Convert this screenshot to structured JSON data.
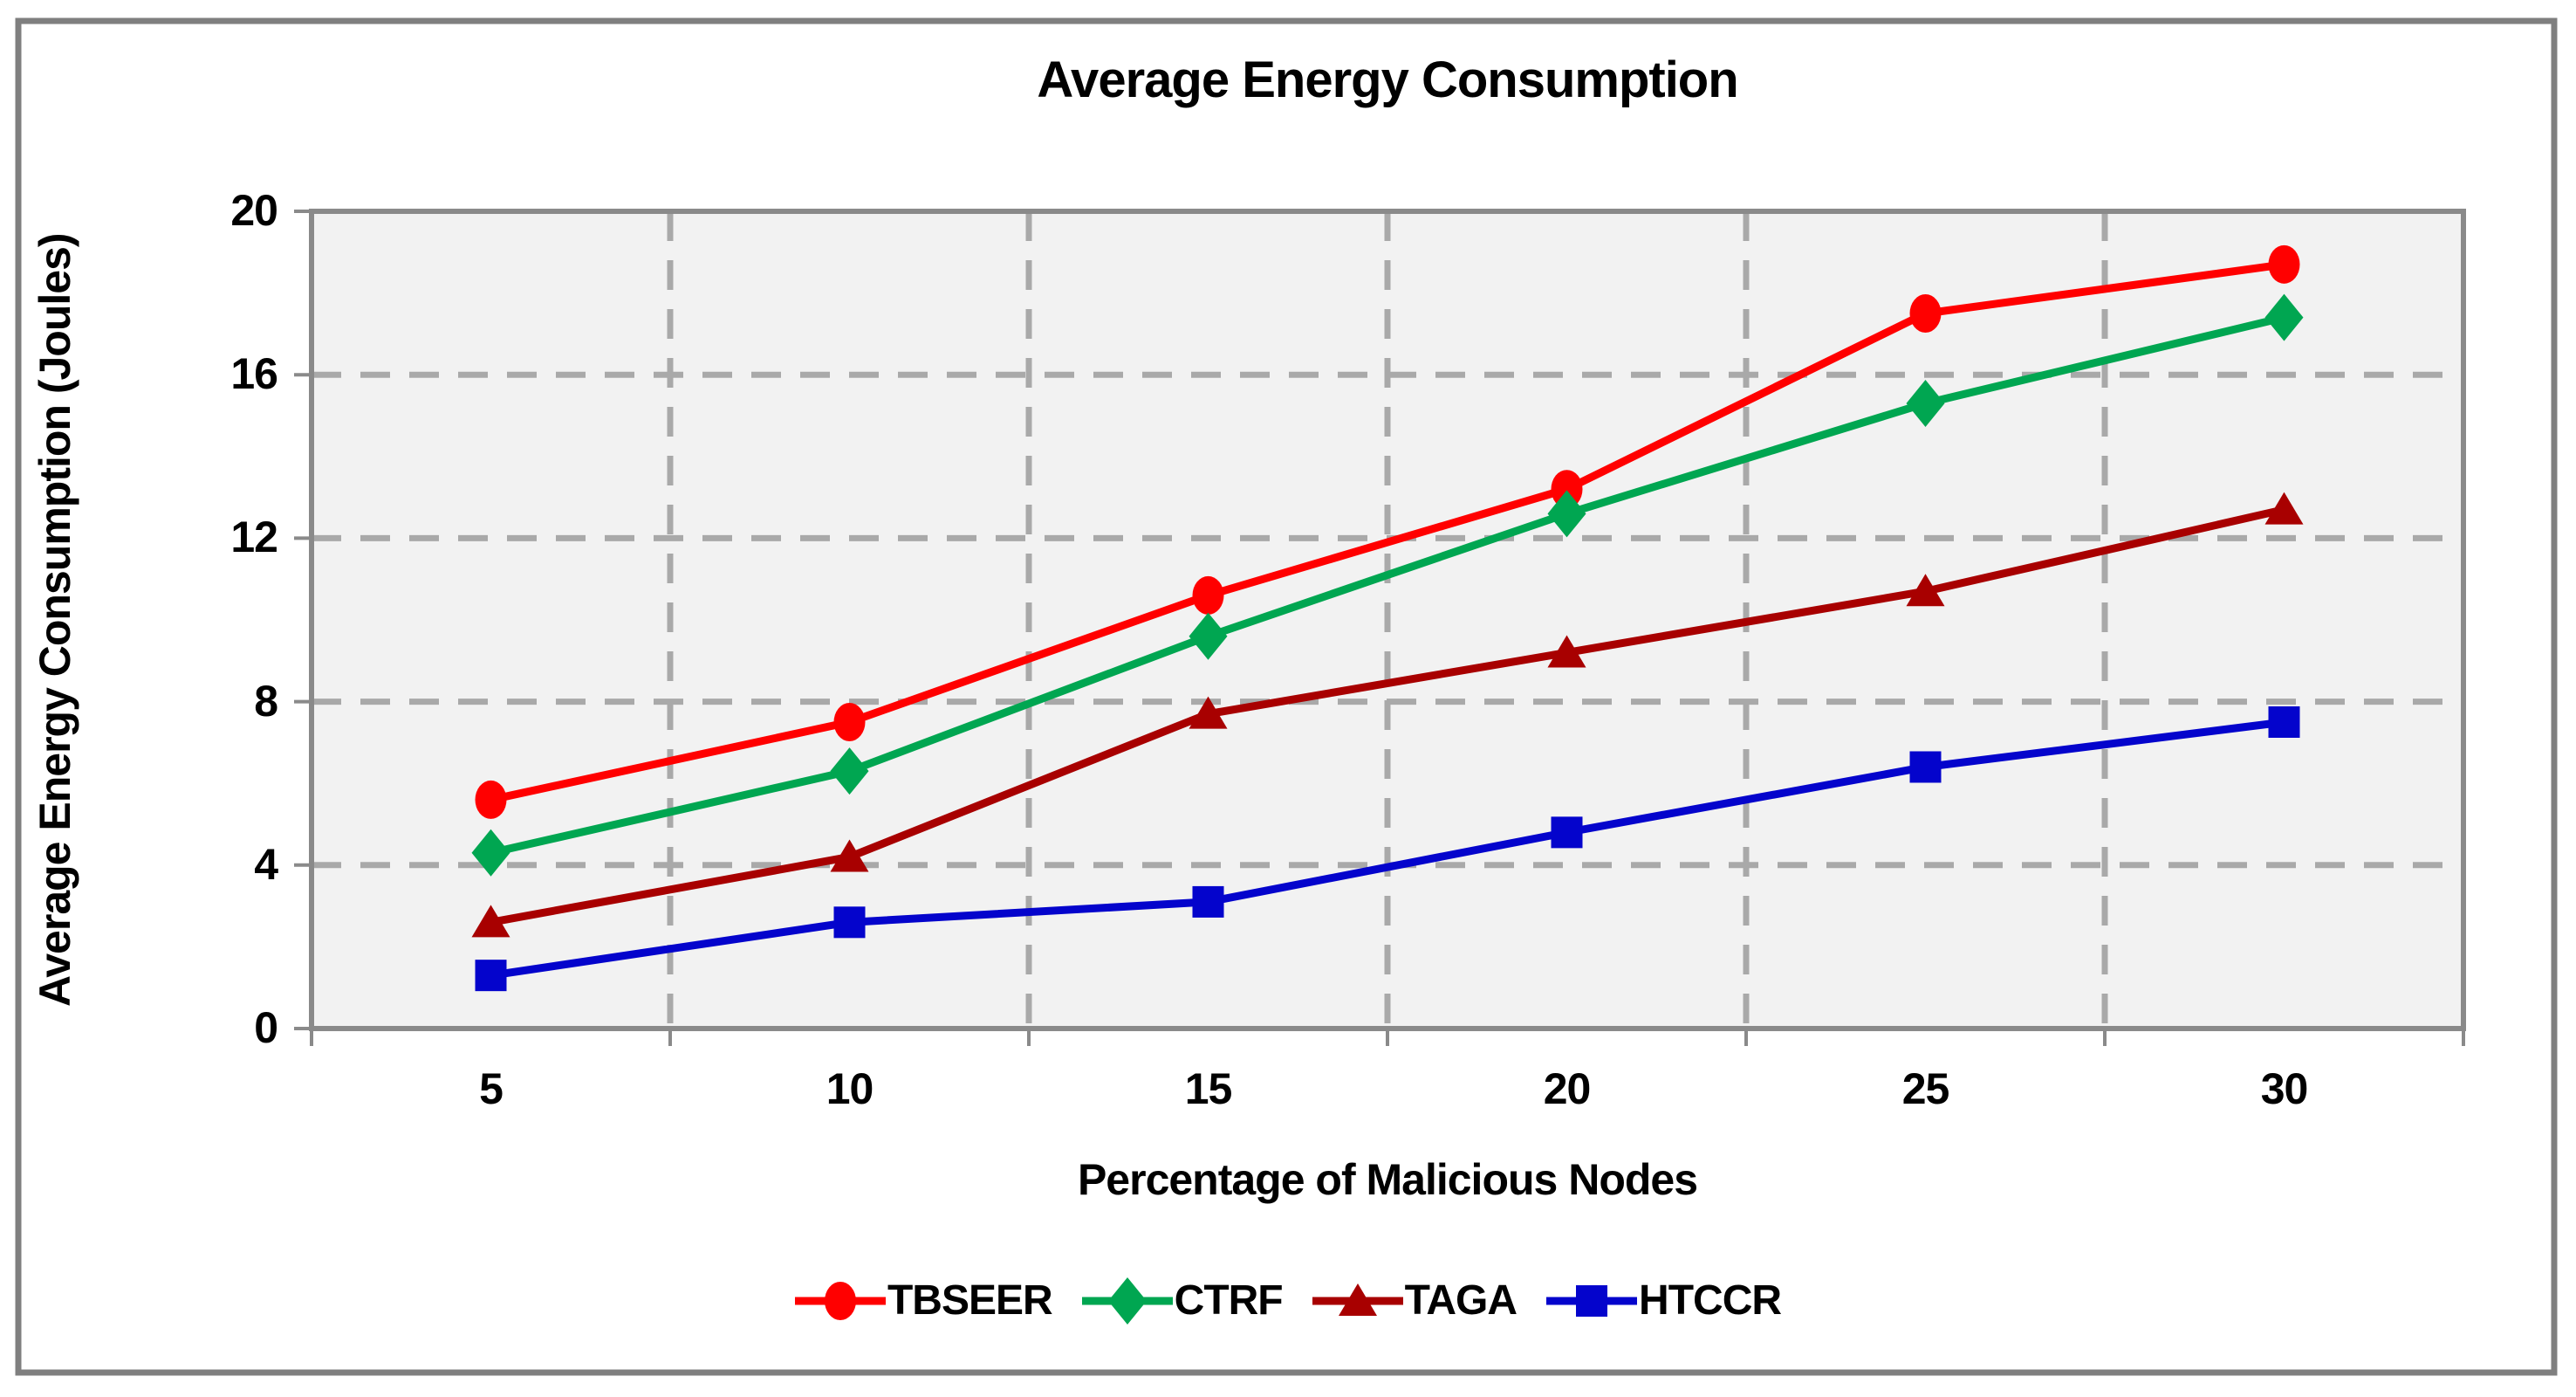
{
  "chart_data": {
    "type": "line",
    "title": "Average Energy Consumption",
    "xlabel": "Percentage of Malicious Nodes",
    "ylabel": "Average Energy Consumption (Joules)",
    "categories": [
      5,
      10,
      15,
      20,
      25,
      30
    ],
    "x_tick_labels": [
      "5",
      "10",
      "15",
      "20",
      "25",
      "30"
    ],
    "y_ticks": [
      "20",
      "16",
      "12",
      "8",
      "4",
      "0"
    ],
    "ylim": [
      0,
      20
    ],
    "y_tick_step": 4,
    "grid": "dashed",
    "legend_position": "bottom",
    "colors": {
      "plot_background": "#F2F2F2",
      "gridline": "#A9A9A9",
      "plot_border": "#8A8A8A",
      "frame_border": "#7F7F7F"
    },
    "series": [
      {
        "name": "TBSEER",
        "color": "#FF0000",
        "marker": "circle",
        "values": [
          5.6,
          7.5,
          10.6,
          13.2,
          17.5,
          18.7
        ]
      },
      {
        "name": "CTRF",
        "color": "#00A651",
        "marker": "diamond",
        "values": [
          4.3,
          6.3,
          9.6,
          12.6,
          15.3,
          17.4
        ]
      },
      {
        "name": "TAGA",
        "color": "#A80000",
        "marker": "triangle",
        "values": [
          2.6,
          4.2,
          7.7,
          9.2,
          10.7,
          12.7
        ]
      },
      {
        "name": "HTCCR",
        "color": "#0404CC",
        "marker": "square",
        "values": [
          1.3,
          2.6,
          3.1,
          4.8,
          6.4,
          7.5
        ]
      }
    ]
  }
}
